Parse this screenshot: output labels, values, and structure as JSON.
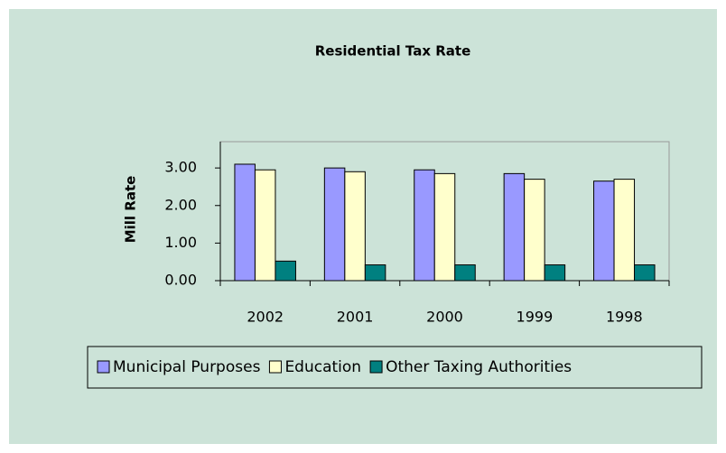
{
  "chart_data": {
    "type": "bar",
    "title": "Residential Tax Rate",
    "y_label": "Mill Rate",
    "categories": [
      "2002",
      "2001",
      "2000",
      "1999",
      "1998"
    ],
    "series": [
      {
        "name": "Municipal Purposes",
        "color": "#9999ff",
        "values": [
          3.1,
          3.0,
          2.95,
          2.85,
          2.65
        ]
      },
      {
        "name": "Education",
        "color": "#ffffcc",
        "values": [
          2.95,
          2.9,
          2.85,
          2.7,
          2.7
        ]
      },
      {
        "name": "Other Taxing Authorities",
        "color": "#008080",
        "values": [
          0.52,
          0.42,
          0.42,
          0.42,
          0.42
        ]
      }
    ],
    "ylim": [
      0,
      3.7
    ],
    "yticks": [
      {
        "value": 0,
        "label": "0.00"
      },
      {
        "value": 1,
        "label": "1.00"
      },
      {
        "value": 2,
        "label": "2.00"
      },
      {
        "value": 3,
        "label": "3.00"
      }
    ],
    "legend": "bottom"
  }
}
